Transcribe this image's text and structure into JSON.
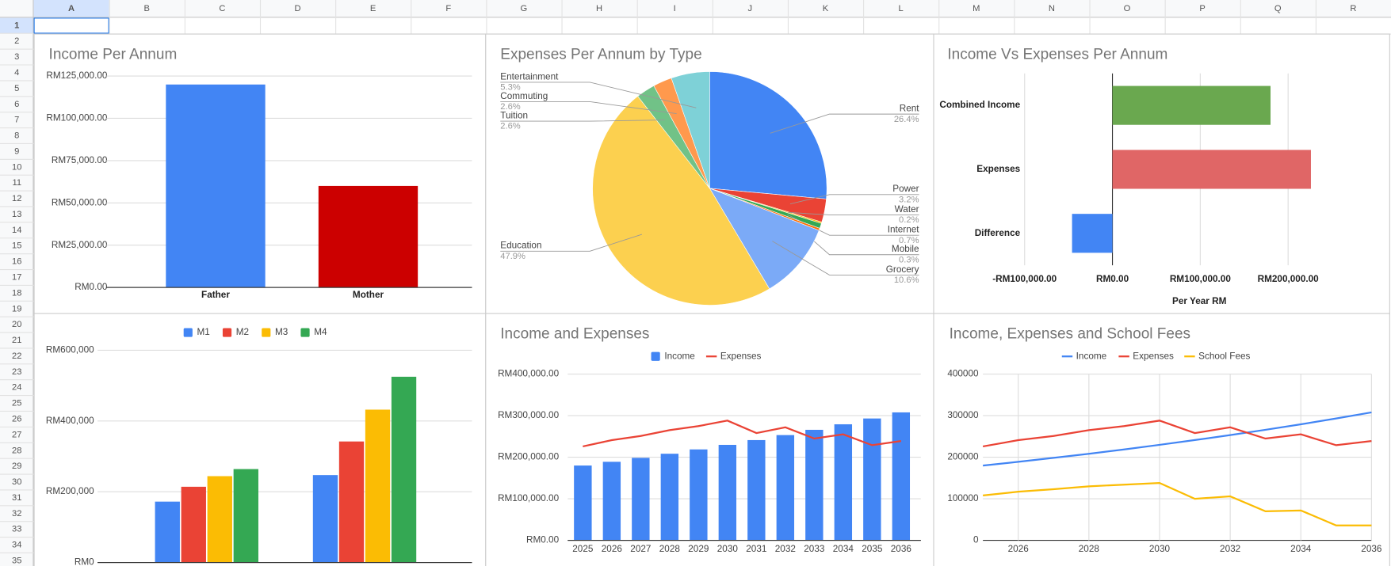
{
  "sheet": {
    "columns": [
      "A",
      "B",
      "C",
      "D",
      "E",
      "F",
      "G",
      "H",
      "I",
      "J",
      "K",
      "L",
      "M",
      "N",
      "O",
      "P",
      "Q",
      "R"
    ],
    "rows": [
      1,
      2,
      3,
      4,
      5,
      6,
      7,
      8,
      9,
      10,
      11,
      12,
      13,
      14,
      15,
      16,
      17,
      18,
      19,
      20,
      21,
      22,
      23,
      24,
      25,
      26,
      27,
      28,
      29,
      30,
      31,
      32,
      33,
      34,
      35
    ]
  },
  "chart_data": [
    {
      "type": "bar",
      "title": "Income Per Annum",
      "categories": [
        "Father",
        "Mother"
      ],
      "values": [
        120000,
        60000
      ],
      "colors": [
        "#4285f4",
        "#cc0000"
      ],
      "ylim": [
        0,
        125000
      ],
      "yticks": [
        {
          "value": 0,
          "label": "RM0.00"
        },
        {
          "value": 25000,
          "label": "RM25,000.00"
        },
        {
          "value": 50000,
          "label": "RM50,000.00"
        },
        {
          "value": 75000,
          "label": "RM75,000.00"
        },
        {
          "value": 100000,
          "label": "RM100,000.00"
        },
        {
          "value": 125000,
          "label": "RM125,000.00"
        }
      ],
      "grid": true
    },
    {
      "type": "pie",
      "title": "Expenses Per Annum by Type",
      "categories": [
        "Rent",
        "Power",
        "Water",
        "Internet",
        "Mobile",
        "Grocery",
        "Education",
        "Tuition",
        "Commuting",
        "Entertainment"
      ],
      "values": [
        26.4,
        3.2,
        0.2,
        0.7,
        0.3,
        10.6,
        47.9,
        2.6,
        2.6,
        5.3
      ],
      "value_labels": [
        "26.4%",
        "3.2%",
        "0.2%",
        "0.7%",
        "0.3%",
        "10.6%",
        "47.9%",
        "2.6%",
        "2.6%",
        "5.3%"
      ],
      "colors": [
        "#4285f4",
        "#ea4335",
        "#fbbc04",
        "#34a853",
        "#ff6d01",
        "#7baaf7",
        "#fcd04f",
        "#71c287",
        "#ff994d",
        "#7ed1d7"
      ]
    },
    {
      "type": "bar",
      "orientation": "horizontal",
      "title": "Income Vs Expenses Per Annum",
      "categories": [
        "Combined Income",
        "Expenses",
        "Difference"
      ],
      "values": [
        180000,
        226000,
        -46000
      ],
      "colors": [
        "#6aa84f",
        "#e06666",
        "#4285f4"
      ],
      "xlabel": "Per Year RM",
      "xlim": [
        -100000,
        250000
      ],
      "xticks": [
        {
          "value": -100000,
          "label": "-RM100,000.00"
        },
        {
          "value": 0,
          "label": "RM0.00"
        },
        {
          "value": 100000,
          "label": "RM100,000.00"
        },
        {
          "value": 200000,
          "label": "RM200,000.00"
        }
      ],
      "grid": true
    },
    {
      "type": "bar",
      "categories": [
        null,
        null
      ],
      "series": [
        {
          "name": "M1",
          "color": "#4285f4",
          "values": [
            172000,
            247000
          ]
        },
        {
          "name": "M2",
          "color": "#ea4335",
          "values": [
            214000,
            342000
          ]
        },
        {
          "name": "M3",
          "color": "#fbbc04",
          "values": [
            244000,
            432000
          ]
        },
        {
          "name": "M4",
          "color": "#34a853",
          "values": [
            264000,
            525000
          ]
        }
      ],
      "ylim": [
        0,
        600000
      ],
      "yticks": [
        {
          "value": 0,
          "label": "RM0"
        },
        {
          "value": 200000,
          "label": "RM200,000"
        },
        {
          "value": 400000,
          "label": "RM400,000"
        },
        {
          "value": 600000,
          "label": "RM600,000"
        }
      ],
      "legend": "top",
      "grid": true
    },
    {
      "type": "combo",
      "title": "Income and Expenses",
      "categories": [
        "2025",
        "2026",
        "2027",
        "2028",
        "2029",
        "2030",
        "2031",
        "2032",
        "2033",
        "2034",
        "2035",
        "2036"
      ],
      "series": [
        {
          "name": "Income",
          "type": "bar",
          "color": "#4285f4",
          "values": [
            180000,
            189000,
            198450,
            208373,
            218791,
            229731,
            241217,
            253278,
            265942,
            279239,
            293201,
            307861
          ]
        },
        {
          "name": "Expenses",
          "type": "line",
          "color": "#ea4335",
          "values": [
            226000,
            241000,
            251000,
            265000,
            275000,
            288000,
            258000,
            272000,
            245000,
            255000,
            229000,
            239000
          ]
        }
      ],
      "ylim": [
        0,
        400000
      ],
      "yticks": [
        {
          "value": 0,
          "label": "RM0.00"
        },
        {
          "value": 100000,
          "label": "RM100,000.00"
        },
        {
          "value": 200000,
          "label": "RM200,000.00"
        },
        {
          "value": 300000,
          "label": "RM300,000.00"
        },
        {
          "value": 400000,
          "label": "RM400,000.00"
        }
      ],
      "legend": "top",
      "grid": true
    },
    {
      "type": "line",
      "title": "Income, Expenses and School Fees",
      "x": [
        2025,
        2026,
        2027,
        2028,
        2029,
        2030,
        2031,
        2032,
        2033,
        2034,
        2035,
        2036
      ],
      "series": [
        {
          "name": "Income",
          "color": "#4285f4",
          "values": [
            180000,
            189000,
            198450,
            208373,
            218791,
            229731,
            241217,
            253278,
            265942,
            279239,
            293201,
            307861
          ]
        },
        {
          "name": "Expenses",
          "color": "#ea4335",
          "values": [
            226000,
            241000,
            251000,
            265000,
            275000,
            288000,
            258000,
            272000,
            245000,
            255000,
            229000,
            239000
          ]
        },
        {
          "name": "School Fees",
          "color": "#fbbc04",
          "values": [
            108000,
            117000,
            123000,
            130000,
            134000,
            138000,
            100000,
            106000,
            70000,
            72000,
            36000,
            36000
          ]
        }
      ],
      "xlim": [
        2025,
        2036
      ],
      "xticks": [
        2026,
        2028,
        2030,
        2032,
        2034,
        2036
      ],
      "ylim": [
        0,
        400000
      ],
      "yticks": [
        0,
        100000,
        200000,
        300000,
        400000
      ],
      "legend": "top",
      "grid": true
    }
  ]
}
